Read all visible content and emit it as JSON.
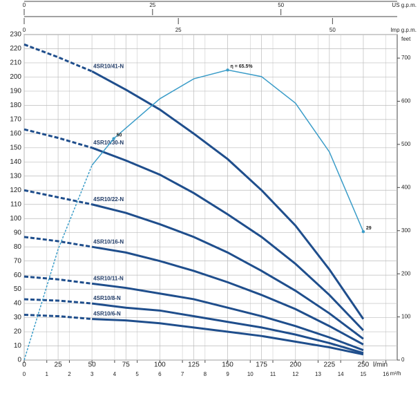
{
  "chart_data": {
    "type": "line",
    "x_label": "l/min",
    "xlim": [
      0,
      275
    ],
    "xticks": [
      0,
      25,
      50,
      75,
      100,
      125,
      150,
      175,
      200,
      225,
      250
    ],
    "ylim": [
      0,
      230
    ],
    "yticks": [
      0,
      10,
      20,
      30,
      40,
      50,
      60,
      70,
      80,
      90,
      100,
      110,
      120,
      130,
      140,
      150,
      160,
      170,
      180,
      190,
      200,
      210,
      220,
      230
    ],
    "y2_label": "feet",
    "y2lim": [
      0,
      754.6
    ],
    "y2ticks": [
      0,
      100,
      200,
      300,
      400,
      500,
      600,
      700
    ],
    "grid": true,
    "dashed_range": [
      0,
      50
    ],
    "x": [
      0,
      25,
      50,
      75,
      100,
      125,
      150,
      175,
      200,
      225,
      250
    ],
    "series": [
      {
        "name": "4SR10/41-N",
        "color": "#1f4e8c",
        "values": [
          223,
          214,
          204,
          191,
          177,
          160,
          142,
          120,
          95,
          64,
          29
        ]
      },
      {
        "name": "4SR10/30-N",
        "color": "#1f4e8c",
        "values": [
          163,
          157,
          150,
          141,
          131,
          118,
          103,
          87,
          68,
          46,
          21
        ]
      },
      {
        "name": "4SR10/22-N",
        "color": "#1f4e8c",
        "values": [
          120,
          115,
          110,
          104,
          96,
          87,
          76,
          63,
          49,
          33,
          15
        ]
      },
      {
        "name": "4SR10/16-N",
        "color": "#1f4e8c",
        "values": [
          87,
          84,
          80,
          76,
          70,
          63,
          55,
          46,
          36,
          24,
          11
        ]
      },
      {
        "name": "4SR10/11-N",
        "color": "#1f4e8c",
        "values": [
          59,
          57,
          54,
          51,
          47,
          43,
          37,
          31,
          24,
          16,
          7
        ]
      },
      {
        "name": "4SR10/8-N",
        "color": "#1f4e8c",
        "values": [
          43,
          42,
          40,
          37,
          35,
          31,
          27,
          23,
          18,
          12,
          5
        ]
      },
      {
        "name": "4SR10/6-N",
        "color": "#1f4e8c",
        "values": [
          32,
          31,
          29,
          28,
          26,
          23,
          20,
          17,
          13,
          9,
          4
        ]
      }
    ],
    "efficiency": {
      "color": "#3a9cc8",
      "eta_lim": [
        0,
        73.5
      ],
      "x": [
        0,
        25,
        50,
        66,
        100,
        125,
        150,
        175,
        200,
        225,
        250
      ],
      "values": [
        0,
        25,
        44,
        50,
        59,
        63.5,
        65.5,
        64,
        58,
        47,
        29
      ],
      "value_labels": [
        null,
        null,
        null,
        "50",
        null,
        null,
        "η = 65.5%",
        null,
        null,
        null,
        "29"
      ]
    },
    "secondary_axes": {
      "m3h": {
        "label": "m³/h",
        "lim": [
          0,
          16.5
        ],
        "ticks": [
          0,
          1,
          2,
          3,
          4,
          5,
          6,
          7,
          8,
          9,
          10,
          11,
          12,
          13,
          14,
          15,
          16
        ]
      },
      "us_gpm": {
        "label": "US g.p.m.",
        "lim": [
          0,
          72.65
        ],
        "ticks": [
          0,
          25,
          50
        ]
      },
      "imp_gpm": {
        "label": "Imp g.p.m.",
        "lim": [
          0,
          60.49
        ],
        "ticks": [
          0,
          25,
          50
        ]
      }
    }
  }
}
